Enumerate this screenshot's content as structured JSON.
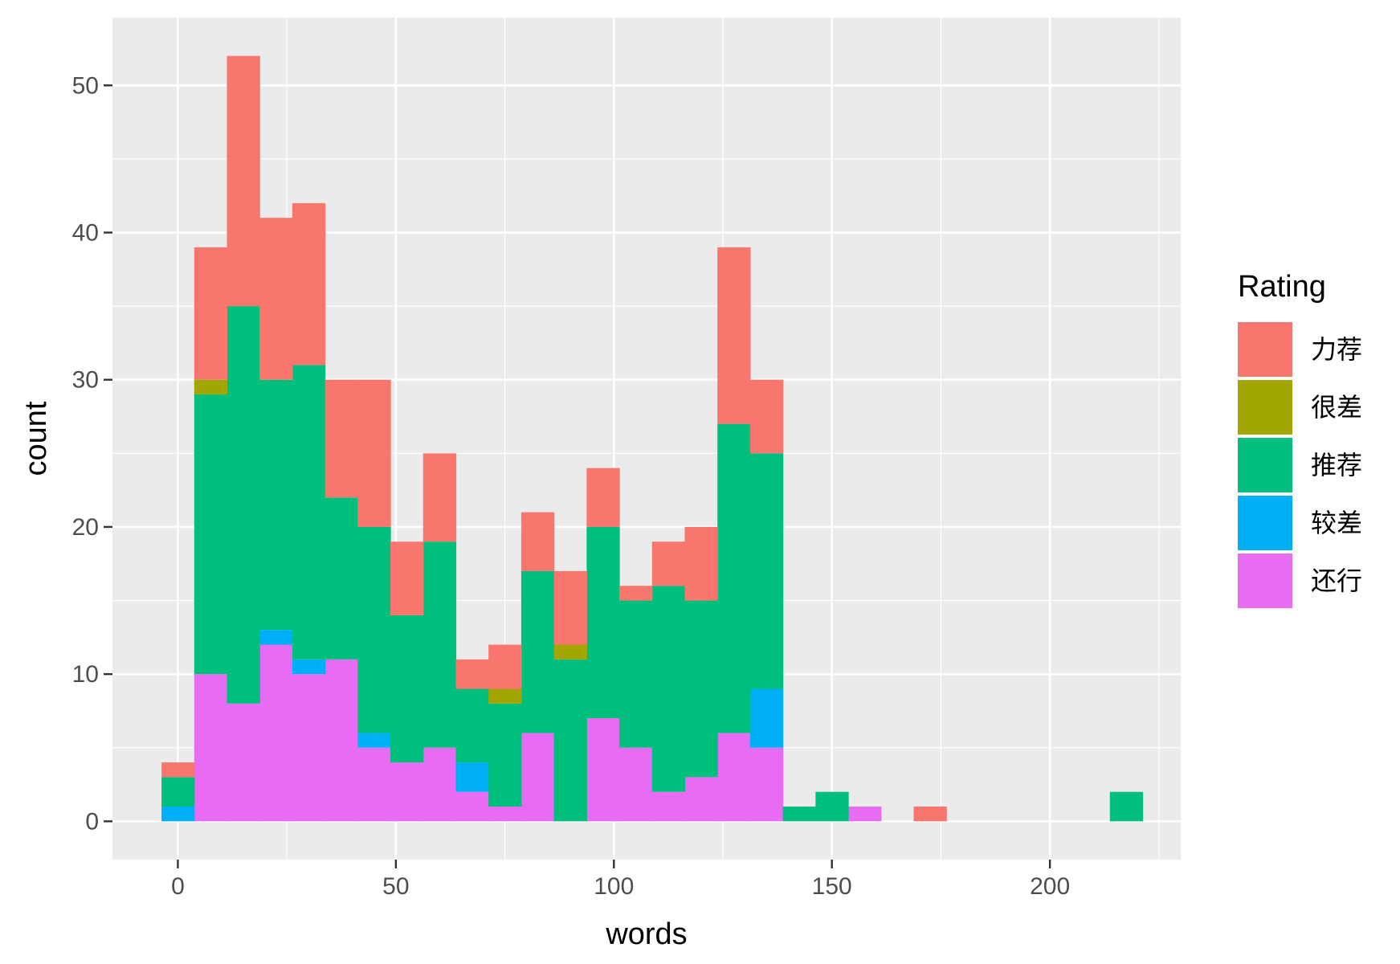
{
  "chart_data": {
    "type": "bar",
    "subtype": "stacked-histogram",
    "title": "",
    "xlabel": "words",
    "ylabel": "count",
    "xlim": [
      -15,
      230
    ],
    "ylim": [
      -2.6,
      54.6
    ],
    "x_ticks": [
      0,
      50,
      100,
      150,
      200
    ],
    "y_ticks": [
      0,
      10,
      20,
      30,
      40,
      50
    ],
    "grid": true,
    "legend": {
      "title": "Rating",
      "placement": "right",
      "entries": [
        {
          "label": "力荐",
          "color": "#F8766D"
        },
        {
          "label": "很差",
          "color": "#A3A500"
        },
        {
          "label": "推荐",
          "color": "#00BF7D"
        },
        {
          "label": "较差",
          "color": "#00B0F6"
        },
        {
          "label": "还行",
          "color": "#E76BF3"
        }
      ]
    },
    "bin_width": 7.5,
    "x": [
      0,
      7.5,
      15,
      22.5,
      30,
      37.5,
      45,
      52.5,
      60,
      67.5,
      75,
      82.5,
      90,
      97.5,
      105,
      112.5,
      120,
      127.5,
      135,
      142.5,
      150,
      157.5,
      165,
      172.5,
      180,
      187.5,
      195,
      202.5,
      210,
      217.5
    ],
    "series": [
      {
        "name": "还行",
        "color": "#E76BF3",
        "values": [
          0,
          10,
          8,
          12,
          10,
          11,
          5,
          4,
          5,
          2,
          1,
          6,
          0,
          7,
          5,
          2,
          3,
          6,
          5,
          0,
          0,
          1,
          0,
          0,
          0,
          0,
          0,
          0,
          0,
          0
        ]
      },
      {
        "name": "较差",
        "color": "#00B0F6",
        "values": [
          1,
          0,
          0,
          1,
          1,
          0,
          1,
          0,
          0,
          2,
          0,
          0,
          0,
          0,
          0,
          0,
          0,
          0,
          4,
          0,
          0,
          0,
          0,
          0,
          0,
          0,
          0,
          0,
          0,
          0
        ]
      },
      {
        "name": "推荐",
        "color": "#00BF7D",
        "values": [
          2,
          19,
          27,
          17,
          20,
          11,
          14,
          10,
          14,
          5,
          7,
          11,
          11,
          13,
          10,
          14,
          12,
          21,
          16,
          1,
          2,
          0,
          0,
          0,
          0,
          0,
          0,
          0,
          0,
          2
        ]
      },
      {
        "name": "很差",
        "color": "#A3A500",
        "values": [
          0,
          1,
          0,
          0,
          0,
          0,
          0,
          0,
          0,
          0,
          1,
          0,
          1,
          0,
          0,
          0,
          0,
          0,
          0,
          0,
          0,
          0,
          0,
          0,
          0,
          0,
          0,
          0,
          0,
          0
        ]
      },
      {
        "name": "力荐",
        "color": "#F8766D",
        "values": [
          1,
          9,
          17,
          11,
          11,
          8,
          10,
          5,
          6,
          2,
          3,
          4,
          5,
          4,
          1,
          3,
          5,
          12,
          5,
          0,
          0,
          0,
          0,
          1,
          0,
          0,
          0,
          0,
          0,
          0
        ]
      }
    ]
  }
}
